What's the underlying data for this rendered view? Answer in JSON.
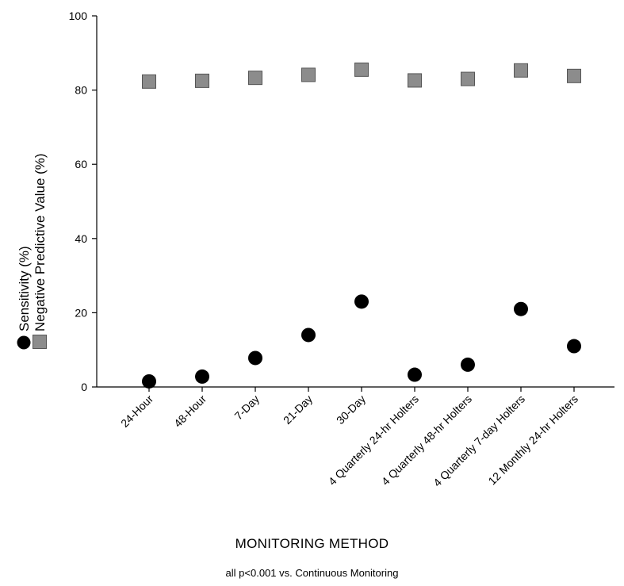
{
  "chart_data": {
    "type": "scatter",
    "categories": [
      "24-Hour",
      "48-Hour",
      "7-Day",
      "21-Day",
      "30-Day",
      "4 Quarterly 24-hr Holters",
      "4 Quarterly 48-hr Holters",
      "4 Quarterly 7-day Holters",
      "12 Monthly 24-hr Holters"
    ],
    "series": [
      {
        "name": "Sensitivity (%)",
        "marker": "circle",
        "color": "#000000",
        "values": [
          1.5,
          2.8,
          7.8,
          14.0,
          23.0,
          3.3,
          6.0,
          21.0,
          11.0
        ]
      },
      {
        "name": "Negative Predictive Value (%)",
        "marker": "square",
        "color": "#8c8c8c",
        "values": [
          82.3,
          82.5,
          83.3,
          84.1,
          85.5,
          82.6,
          83.0,
          85.3,
          83.8
        ]
      }
    ],
    "ylim": [
      0,
      100
    ],
    "yticks": [
      0,
      20,
      40,
      60,
      80,
      100
    ],
    "xlabel": "MONITORING METHOD",
    "ylabel_lines": [
      "Sensitivity (%)",
      "Negative Predictive Value (%)"
    ],
    "note": "all p<0.001 vs. Continuous Monitoring",
    "grid": false
  }
}
